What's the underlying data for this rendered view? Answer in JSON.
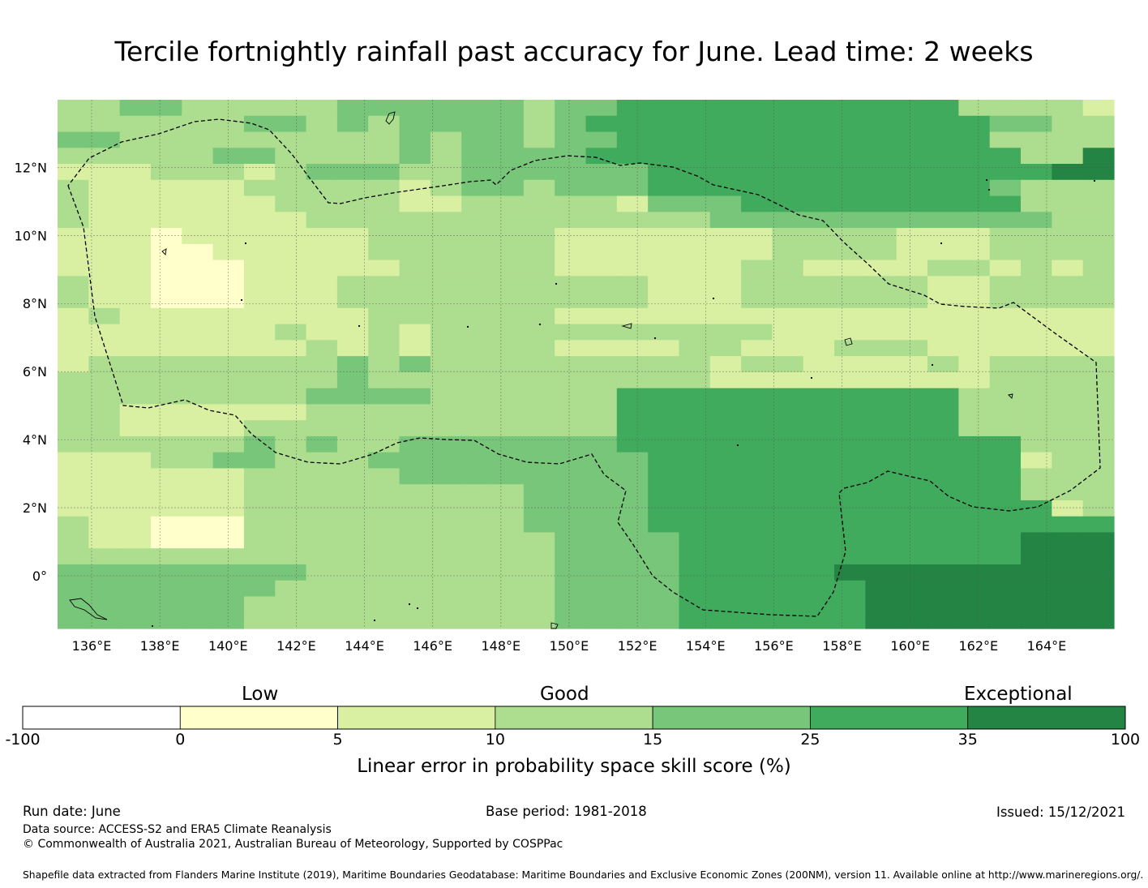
{
  "title": "Tercile fortnightly rainfall past accuracy for June. Lead time: 2 weeks",
  "map": {
    "lon_range": [
      135,
      166
    ],
    "lat_range": [
      -1.5,
      14
    ],
    "grid_cell_deg": 0.83,
    "lon_ticks": [
      {
        "value": 136,
        "label": "136°E"
      },
      {
        "value": 138,
        "label": "138°E"
      },
      {
        "value": 140,
        "label": "140°E"
      },
      {
        "value": 142,
        "label": "142°E"
      },
      {
        "value": 144,
        "label": "144°E"
      },
      {
        "value": 146,
        "label": "146°E"
      },
      {
        "value": 148,
        "label": "148°E"
      },
      {
        "value": 150,
        "label": "150°E"
      },
      {
        "value": 152,
        "label": "152°E"
      },
      {
        "value": 154,
        "label": "154°E"
      },
      {
        "value": 156,
        "label": "156°E"
      },
      {
        "value": 158,
        "label": "158°E"
      },
      {
        "value": 160,
        "label": "160°E"
      },
      {
        "value": 162,
        "label": "162°E"
      },
      {
        "value": 164,
        "label": "164°E"
      }
    ],
    "lat_ticks": [
      {
        "value": 12,
        "label": "12°N"
      },
      {
        "value": 10,
        "label": "10°N"
      },
      {
        "value": 8,
        "label": "8°N"
      },
      {
        "value": 6,
        "label": "6°N"
      },
      {
        "value": 4,
        "label": "4°N"
      },
      {
        "value": 2,
        "label": "2°N"
      },
      {
        "value": 0,
        "label": "0°"
      }
    ],
    "grid": true,
    "eez_boundary_style": "dashed"
  },
  "legend": {
    "categories": [
      "Low",
      "Good",
      "Exceptional"
    ],
    "bins": [
      {
        "from": -100,
        "to": 0,
        "color": "#ffffff"
      },
      {
        "from": 0,
        "to": 5,
        "color": "#ffffcc"
      },
      {
        "from": 5,
        "to": 10,
        "color": "#d9f0a3"
      },
      {
        "from": 10,
        "to": 15,
        "color": "#addd8e"
      },
      {
        "from": 15,
        "to": 25,
        "color": "#78c679"
      },
      {
        "from": 25,
        "to": 35,
        "color": "#41ab5d"
      },
      {
        "from": 35,
        "to": 100,
        "color": "#238443"
      }
    ],
    "tick_labels": [
      "-100",
      "0",
      "5",
      "10",
      "15",
      "25",
      "35",
      "100"
    ],
    "label": "Linear error in probability space skill score (%)"
  },
  "footer": {
    "run_date": "Run date: June",
    "base_period": "Base period: 1981-2018",
    "issued": "Issued: 15/12/2021",
    "data_source": "Data source: ACCESS-S2 and ERA5 Climate Reanalysis",
    "copyright": "© Commonwealth of Australia 2021, Australian Bureau of Meteorology, Supported by COSPPac",
    "shapefile": "Shapefile data extracted from Flanders Marine Institute (2019), Maritime Boundaries Geodatabase: Maritime Boundaries and Exclusive Economic Zones (200NM), version 11. Available online at http://www.marineregions.org/."
  },
  "colors": {
    "grid_line": "#555555",
    "boundary": "#000000"
  }
}
